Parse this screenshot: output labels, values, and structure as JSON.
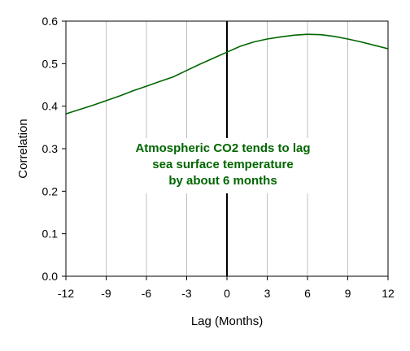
{
  "chart_data": {
    "type": "line",
    "title": "",
    "xlabel": "Lag (Months)",
    "ylabel": "Correlation",
    "xlim": [
      -12,
      12
    ],
    "ylim": [
      0,
      0.6
    ],
    "x_ticks": [
      "-12",
      "-9",
      "-6",
      "-3",
      "0",
      "3",
      "6",
      "9",
      "12"
    ],
    "y_ticks": [
      "0.0",
      "0.1",
      "0.2",
      "0.3",
      "0.4",
      "0.5",
      "0.6"
    ],
    "grid": "vertical lines",
    "reference_line_x": 0,
    "series": [
      {
        "color": "#006600",
        "x": [
          -12,
          -11,
          -10,
          -9,
          -8,
          -7,
          -6,
          -5,
          -4,
          -3,
          -2,
          -1,
          0,
          1,
          2,
          3,
          4,
          5,
          6,
          7,
          8,
          9,
          10,
          11,
          12
        ],
        "y": [
          0.382,
          0.392,
          0.402,
          0.413,
          0.424,
          0.436,
          0.447,
          0.458,
          0.469,
          0.484,
          0.499,
          0.513,
          0.527,
          0.541,
          0.551,
          0.558,
          0.563,
          0.567,
          0.569,
          0.568,
          0.564,
          0.558,
          0.551,
          0.543,
          0.535
        ]
      }
    ],
    "annotation": {
      "lines": [
        "Atmospheric CO2 tends to lag",
        "sea surface temperature",
        "by about 6 months"
      ],
      "color": "#006600"
    },
    "colors": {
      "grid": "#c0c0c0",
      "reference": "#000000",
      "axis": "#000000"
    }
  }
}
